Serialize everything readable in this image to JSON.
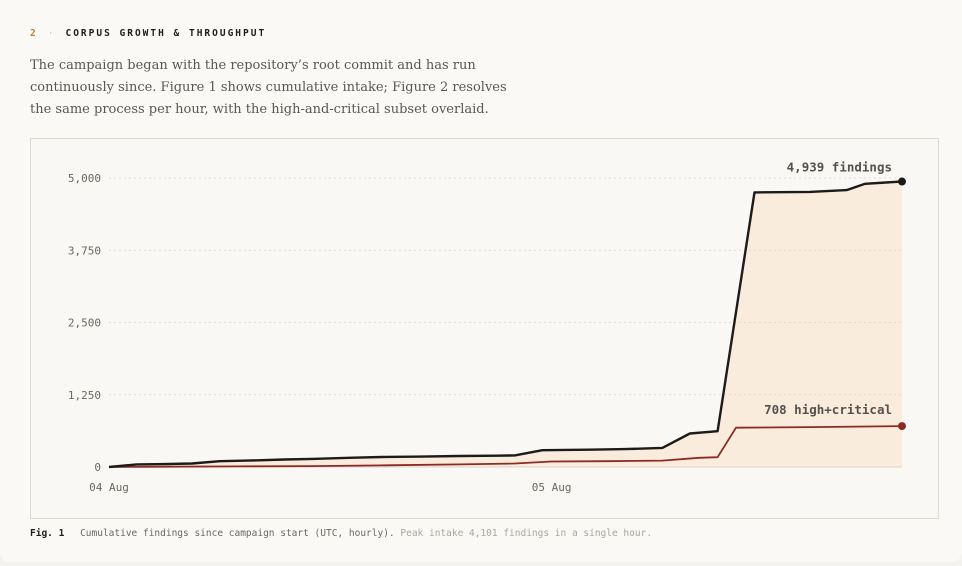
{
  "section": {
    "number": "2",
    "separator": "·",
    "title": "CORPUS GROWTH & THROUGHPUT"
  },
  "intro_text": "The campaign began with the repository’s root commit and has run continuously since. Figure 1 shows cumulative intake; Figure 2 resolves the same process per hour, with the high-and-critical subset overlaid.",
  "caption": {
    "fig_label": "Fig. 1",
    "text": "Cumulative findings since campaign start (UTC, hourly).",
    "extra": "Peak intake 4,101 findings in a single hour."
  },
  "colors": {
    "total_line": "#1c1b19",
    "high_line": "#8d2a24",
    "fill": "#f8e8d6",
    "grid": "#d9d5cc"
  },
  "chart_data": {
    "type": "line",
    "x_unit": "hours since 04 Aug 00:00 UTC",
    "x_ticks": [
      {
        "x": 0,
        "label": "04 Aug"
      },
      {
        "x": 24,
        "label": "05 Aug"
      }
    ],
    "xlim": [
      0,
      43
    ],
    "ylim": [
      0,
      5000
    ],
    "y_ticks": [
      {
        "value": 0,
        "label": "0"
      },
      {
        "value": 1250,
        "label": "1,250"
      },
      {
        "value": 2500,
        "label": "2,500"
      },
      {
        "value": 3750,
        "label": "3,750"
      },
      {
        "value": 5000,
        "label": "5,000"
      }
    ],
    "grid": true,
    "series": [
      {
        "key": "total",
        "points": [
          [
            0,
            0
          ],
          [
            1.5,
            45
          ],
          [
            3,
            50
          ],
          [
            4.5,
            60
          ],
          [
            6,
            100
          ],
          [
            7.5,
            110
          ],
          [
            9.5,
            130
          ],
          [
            11,
            140
          ],
          [
            13,
            160
          ],
          [
            15,
            175
          ],
          [
            17,
            180
          ],
          [
            19,
            190
          ],
          [
            21,
            195
          ],
          [
            22,
            200
          ],
          [
            23.5,
            290
          ],
          [
            26,
            300
          ],
          [
            28,
            310
          ],
          [
            30,
            330
          ],
          [
            31.5,
            580
          ],
          [
            33,
            620
          ],
          [
            35,
            4750
          ],
          [
            38,
            4760
          ],
          [
            40,
            4790
          ],
          [
            41,
            4900
          ],
          [
            43,
            4939
          ]
        ],
        "end_label": "4,939 findings"
      },
      {
        "key": "high_critical",
        "points": [
          [
            0,
            0
          ],
          [
            3,
            5
          ],
          [
            7,
            10
          ],
          [
            11,
            15
          ],
          [
            15,
            30
          ],
          [
            19,
            45
          ],
          [
            22,
            60
          ],
          [
            24,
            95
          ],
          [
            27,
            100
          ],
          [
            30,
            110
          ],
          [
            32,
            160
          ],
          [
            33,
            170
          ],
          [
            34,
            680
          ],
          [
            38,
            690
          ],
          [
            43,
            708
          ]
        ],
        "end_label": "708 high+critical"
      }
    ]
  }
}
